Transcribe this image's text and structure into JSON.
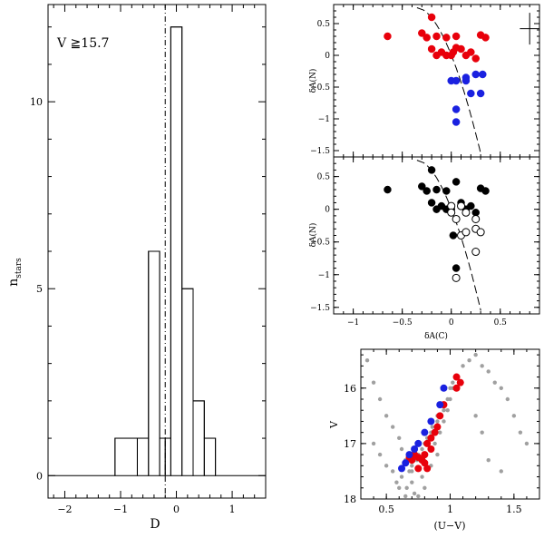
{
  "chart_data": [
    {
      "type": "bar",
      "subtype": "step-histogram",
      "annotation": "V ≧15.7",
      "xlabel": "D",
      "ylabel_main": "n",
      "ylabel_sub": "stars",
      "xlim": [
        -2.3,
        1.6
      ],
      "ylim": [
        -0.6,
        12.6
      ],
      "xticks": [
        -2,
        -1,
        0,
        1
      ],
      "xtick_labels": [
        "−2",
        "−1",
        "0",
        "1"
      ],
      "yticks": [
        0,
        5,
        10
      ],
      "ytick_labels": [
        "0",
        "5",
        "10"
      ],
      "bin_edges": [
        -2.3,
        -1.1,
        -0.7,
        -0.5,
        -0.3,
        -0.2,
        -0.1,
        0.1,
        0.3,
        0.5,
        0.7,
        1.6
      ],
      "counts": [
        0,
        1,
        1,
        6,
        1,
        1,
        12,
        5,
        2,
        1,
        0
      ],
      "reference_line_x": -0.2
    },
    {
      "type": "scatter",
      "xlim": [
        -1.2,
        0.9
      ],
      "ylim": [
        -1.6,
        0.8
      ],
      "ylabel": "δA(N)",
      "yticks": [
        0.5,
        0,
        -0.5,
        -1,
        -1.5
      ],
      "ytick_labels": [
        "0.5",
        "0",
        "−0.5",
        "−1",
        "−1.5"
      ],
      "error_bar": {
        "x": 0.8,
        "y": 0.42,
        "xerr": 0.1,
        "yerr": 0.25
      },
      "curve": "dashed",
      "series": [
        {
          "name": "red",
          "color": "#e8000b",
          "points": [
            [
              -0.65,
              0.3
            ],
            [
              -0.3,
              0.35
            ],
            [
              -0.25,
              0.28
            ],
            [
              -0.2,
              0.6
            ],
            [
              -0.15,
              0.3
            ],
            [
              -0.2,
              0.1
            ],
            [
              -0.05,
              0.28
            ],
            [
              0.05,
              0.3
            ],
            [
              -0.1,
              0.05
            ],
            [
              -0.05,
              0.0
            ],
            [
              0.0,
              0.0
            ],
            [
              0.1,
              0.1
            ],
            [
              0.15,
              0.0
            ],
            [
              0.2,
              0.05
            ],
            [
              0.25,
              -0.05
            ],
            [
              0.05,
              0.12
            ],
            [
              0.35,
              0.28
            ],
            [
              0.3,
              0.32
            ],
            [
              -0.15,
              0.0
            ],
            [
              0.02,
              0.05
            ]
          ]
        },
        {
          "name": "blue",
          "color": "#1a21e0",
          "points": [
            [
              0.0,
              -0.4
            ],
            [
              0.05,
              -0.4
            ],
            [
              0.15,
              -0.4
            ],
            [
              0.25,
              -0.3
            ],
            [
              0.32,
              -0.3
            ],
            [
              0.2,
              -0.6
            ],
            [
              0.3,
              -0.6
            ],
            [
              0.05,
              -0.85
            ],
            [
              0.05,
              -1.05
            ],
            [
              0.15,
              -0.35
            ]
          ]
        }
      ]
    },
    {
      "type": "scatter",
      "xlim": [
        -1.2,
        0.9
      ],
      "ylim": [
        -1.6,
        0.8
      ],
      "xlabel": "δA(C)",
      "ylabel": "δA(N)",
      "xticks": [
        -1,
        -0.5,
        0,
        0.5
      ],
      "xtick_labels": [
        "−1",
        "−0.5",
        "0",
        "0.5"
      ],
      "yticks": [
        0.5,
        0,
        -0.5,
        -1,
        -1.5
      ],
      "ytick_labels": [
        "0.5",
        "0",
        "−0.5",
        "−1",
        "−1.5"
      ],
      "curve": "dashed",
      "series": [
        {
          "name": "filled",
          "color": "#000000",
          "points": [
            [
              -0.65,
              0.3
            ],
            [
              -0.3,
              0.35
            ],
            [
              -0.25,
              0.28
            ],
            [
              -0.2,
              0.6
            ],
            [
              -0.15,
              0.3
            ],
            [
              -0.2,
              0.1
            ],
            [
              -0.05,
              0.28
            ],
            [
              0.05,
              0.42
            ],
            [
              -0.1,
              0.05
            ],
            [
              -0.05,
              0.0
            ],
            [
              0.0,
              0.0
            ],
            [
              0.1,
              0.1
            ],
            [
              0.15,
              0.0
            ],
            [
              0.2,
              0.05
            ],
            [
              0.25,
              -0.05
            ],
            [
              0.35,
              0.28
            ],
            [
              0.3,
              0.32
            ],
            [
              -0.15,
              0.0
            ],
            [
              0.05,
              -0.9
            ],
            [
              0.02,
              -0.4
            ]
          ]
        },
        {
          "name": "open",
          "color": "#ffffff",
          "points": [
            [
              0.0,
              0.05
            ],
            [
              0.1,
              0.05
            ],
            [
              0.15,
              -0.05
            ],
            [
              0.05,
              -0.15
            ],
            [
              0.25,
              -0.15
            ],
            [
              0.1,
              -0.4
            ],
            [
              0.15,
              -0.35
            ],
            [
              0.25,
              -0.3
            ],
            [
              0.3,
              -0.35
            ],
            [
              0.25,
              -0.65
            ],
            [
              0.05,
              -1.05
            ],
            [
              0.0,
              -0.05
            ]
          ]
        }
      ]
    },
    {
      "type": "scatter",
      "xlim": [
        0.3,
        1.7
      ],
      "ylim": [
        18.0,
        15.3
      ],
      "xlabel": "(U−V)",
      "ylabel": "V",
      "xticks": [
        0.5,
        1,
        1.5
      ],
      "xtick_labels": [
        "0.5",
        "1",
        "1.5"
      ],
      "yticks": [
        16,
        17,
        18
      ],
      "ytick_labels": [
        "16",
        "17",
        "18"
      ],
      "series": [
        {
          "name": "field",
          "color": "#a0a0a0",
          "points": [
            [
              0.35,
              15.5
            ],
            [
              0.4,
              15.9
            ],
            [
              0.45,
              16.2
            ],
            [
              0.5,
              16.5
            ],
            [
              0.55,
              16.7
            ],
            [
              0.6,
              16.9
            ],
            [
              0.62,
              17.1
            ],
            [
              0.65,
              17.3
            ],
            [
              0.68,
              17.5
            ],
            [
              0.7,
              17.7
            ],
            [
              0.72,
              17.9
            ],
            [
              0.75,
              17.95
            ],
            [
              0.8,
              17.8
            ],
            [
              0.78,
              17.6
            ],
            [
              0.85,
              17.4
            ],
            [
              0.9,
              17.2
            ],
            [
              0.88,
              17.0
            ],
            [
              0.92,
              16.8
            ],
            [
              0.95,
              16.6
            ],
            [
              0.98,
              16.4
            ],
            [
              1.0,
              16.2
            ],
            [
              1.02,
              16.0
            ],
            [
              1.05,
              15.8
            ],
            [
              1.1,
              15.6
            ],
            [
              1.15,
              15.5
            ],
            [
              1.2,
              15.4
            ],
            [
              1.25,
              15.6
            ],
            [
              1.3,
              15.7
            ],
            [
              1.35,
              15.9
            ],
            [
              1.4,
              16.0
            ],
            [
              1.45,
              16.2
            ],
            [
              1.5,
              16.5
            ],
            [
              1.55,
              16.8
            ],
            [
              1.6,
              17.0
            ],
            [
              0.6,
              17.8
            ],
            [
              0.65,
              17.95
            ],
            [
              0.7,
              17.4
            ],
            [
              0.75,
              17.2
            ],
            [
              0.8,
              17.0
            ],
            [
              0.85,
              16.8
            ],
            [
              0.9,
              16.6
            ],
            [
              0.95,
              16.4
            ],
            [
              0.98,
              16.2
            ],
            [
              1.0,
              16.0
            ],
            [
              1.02,
              15.9
            ],
            [
              0.55,
              17.5
            ],
            [
              0.58,
              17.7
            ],
            [
              0.62,
              17.6
            ],
            [
              0.66,
              17.8
            ],
            [
              0.7,
              17.5
            ],
            [
              0.74,
              17.3
            ],
            [
              0.78,
              17.1
            ],
            [
              0.82,
              16.9
            ],
            [
              0.86,
              16.7
            ],
            [
              0.9,
              16.5
            ],
            [
              0.4,
              17.0
            ],
            [
              0.45,
              17.2
            ],
            [
              0.5,
              17.4
            ],
            [
              1.2,
              16.5
            ],
            [
              1.25,
              16.8
            ],
            [
              1.3,
              17.3
            ],
            [
              1.4,
              17.5
            ]
          ]
        },
        {
          "name": "red",
          "color": "#e8000b",
          "points": [
            [
              1.05,
              15.8
            ],
            [
              1.08,
              15.9
            ],
            [
              1.05,
              16.0
            ],
            [
              0.95,
              16.3
            ],
            [
              0.92,
              16.5
            ],
            [
              0.9,
              16.7
            ],
            [
              0.88,
              16.8
            ],
            [
              0.85,
              16.9
            ],
            [
              0.82,
              17.0
            ],
            [
              0.8,
              17.2
            ],
            [
              0.75,
              17.25
            ],
            [
              0.78,
              17.3
            ],
            [
              0.7,
              17.3
            ],
            [
              0.85,
              17.1
            ],
            [
              0.8,
              17.35
            ],
            [
              0.72,
              17.2
            ],
            [
              0.68,
              17.25
            ],
            [
              0.75,
              17.45
            ],
            [
              0.82,
              17.45
            ]
          ]
        },
        {
          "name": "blue",
          "color": "#1a21e0",
          "points": [
            [
              0.95,
              16.0
            ],
            [
              0.92,
              16.3
            ],
            [
              0.85,
              16.6
            ],
            [
              0.8,
              16.8
            ],
            [
              0.75,
              17.0
            ],
            [
              0.72,
              17.1
            ],
            [
              0.68,
              17.2
            ],
            [
              0.65,
              17.35
            ],
            [
              0.62,
              17.45
            ]
          ]
        }
      ]
    }
  ]
}
